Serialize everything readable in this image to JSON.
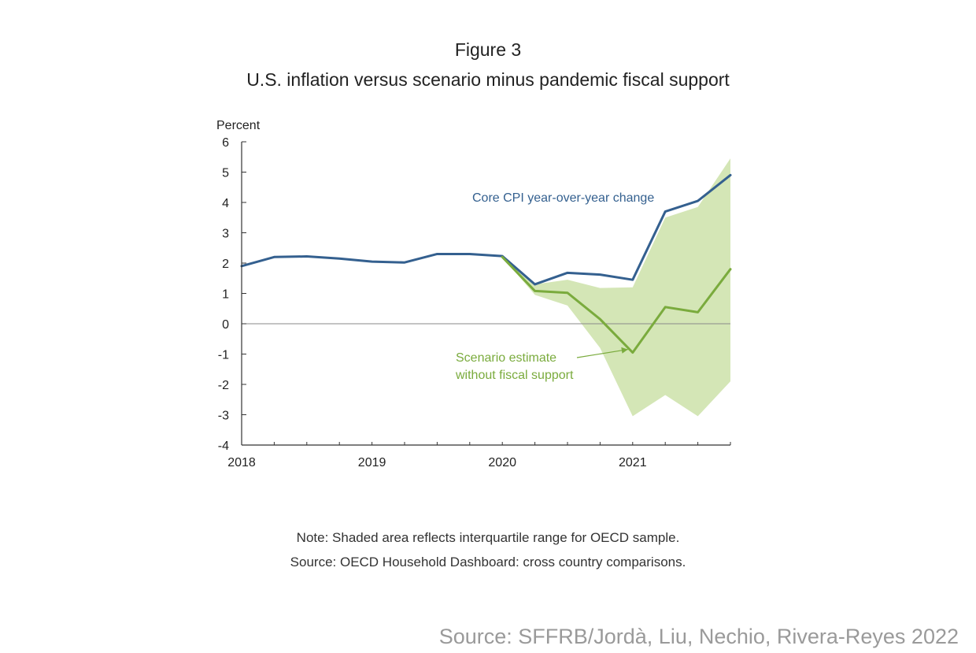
{
  "figure": {
    "label": "Figure 3",
    "title": "U.S. inflation versus scenario minus pandemic fiscal support",
    "note": "Note: Shaded area reflects interquartile range for OECD sample.",
    "source": "Source: OECD Household Dashboard: cross country comparisons.",
    "credit": "Source: SFFRB/Jordà, Liu, Nechio, Rivera-Reyes 2022"
  },
  "chart_data": {
    "type": "line",
    "ylabel": "Percent",
    "xlim": [
      2018.0,
      2021.75
    ],
    "ylim": [
      -4,
      6
    ],
    "yticks": [
      6,
      5,
      4,
      3,
      2,
      1,
      0,
      -1,
      -2,
      -3,
      -4
    ],
    "xticks": [
      2018,
      2019,
      2020,
      2021
    ],
    "colors": {
      "core": "#34608f",
      "scenario": "#7aab3d",
      "band": "#d4e6b6"
    },
    "series": [
      {
        "key": "core",
        "label": "Core CPI year-over-year change",
        "x": [
          2018.0,
          2018.25,
          2018.5,
          2018.75,
          2019.0,
          2019.25,
          2019.5,
          2019.75,
          2020.0,
          2020.25,
          2020.5,
          2020.75,
          2021.0,
          2021.25,
          2021.5,
          2021.75
        ],
        "y": [
          1.9,
          2.2,
          2.22,
          2.15,
          2.05,
          2.02,
          2.3,
          2.3,
          2.23,
          1.3,
          1.68,
          1.62,
          1.45,
          3.7,
          4.05,
          4.9
        ]
      },
      {
        "key": "scenario",
        "label": "Scenario estimate without fiscal support",
        "label_lines": [
          "Scenario estimate",
          "without fiscal support"
        ],
        "x": [
          2020.0,
          2020.25,
          2020.5,
          2020.75,
          2021.0,
          2021.25,
          2021.5,
          2021.75
        ],
        "y": [
          2.2,
          1.08,
          1.02,
          0.15,
          -0.95,
          0.55,
          0.38,
          1.8
        ]
      }
    ],
    "band": {
      "x": [
        2020.0,
        2020.25,
        2020.5,
        2020.75,
        2021.0,
        2021.25,
        2021.5,
        2021.75
      ],
      "upper": [
        2.2,
        1.3,
        1.45,
        1.18,
        1.2,
        3.5,
        3.85,
        5.45
      ],
      "lower": [
        2.2,
        0.95,
        0.6,
        -0.8,
        -3.05,
        -2.35,
        -3.05,
        -1.9
      ]
    }
  }
}
